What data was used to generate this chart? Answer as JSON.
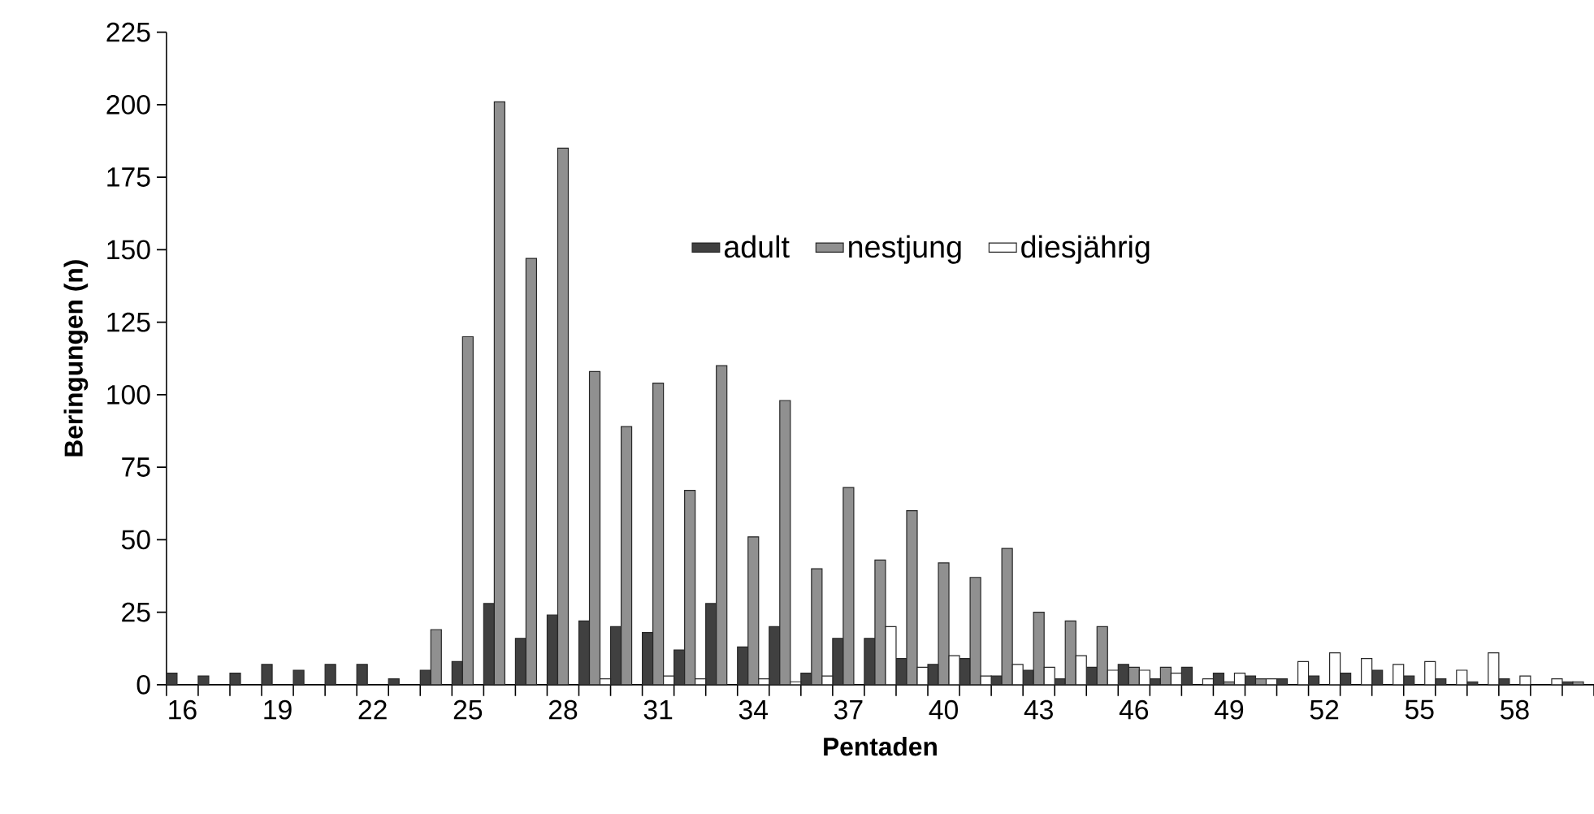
{
  "chart_data": {
    "type": "bar",
    "xlabel": "Pentaden",
    "ylabel": "Beringungen (n)",
    "categories": [
      "16",
      null,
      null,
      "19",
      null,
      null,
      "22",
      null,
      null,
      "25",
      null,
      null,
      "28",
      null,
      null,
      "31",
      null,
      null,
      "34",
      null,
      null,
      "37",
      null,
      null,
      "40",
      null,
      null,
      "43",
      null,
      null,
      "46",
      null,
      null,
      "49",
      null,
      null,
      "52",
      null,
      null,
      "55",
      null,
      null,
      "58",
      null,
      null
    ],
    "series": [
      {
        "name": "adult",
        "color": "#404040",
        "values": [
          4,
          3,
          4,
          7,
          5,
          7,
          7,
          2,
          5,
          8,
          28,
          16,
          24,
          22,
          20,
          18,
          12,
          28,
          13,
          20,
          4,
          16,
          16,
          9,
          7,
          9,
          3,
          5,
          2,
          6,
          7,
          2,
          6,
          4,
          3,
          2,
          3,
          4,
          5,
          3,
          2,
          1,
          2,
          null,
          1
        ]
      },
      {
        "name": "nestjung",
        "color": "#909090",
        "values": [
          null,
          null,
          null,
          null,
          null,
          null,
          null,
          null,
          19,
          120,
          201,
          147,
          185,
          108,
          89,
          104,
          67,
          110,
          51,
          98,
          40,
          68,
          43,
          60,
          42,
          37,
          47,
          25,
          22,
          20,
          6,
          6,
          null,
          1,
          2,
          null,
          null,
          null,
          null,
          null,
          null,
          null,
          null,
          null,
          1
        ]
      },
      {
        "name": "diesjährig",
        "color": "#ffffff",
        "values": [
          null,
          null,
          null,
          null,
          null,
          null,
          null,
          null,
          null,
          null,
          null,
          null,
          null,
          2,
          null,
          3,
          2,
          null,
          2,
          1,
          3,
          null,
          20,
          6,
          10,
          3,
          7,
          6,
          10,
          5,
          5,
          4,
          2,
          4,
          2,
          8,
          11,
          9,
          7,
          8,
          5,
          11,
          3,
          2,
          null
        ]
      }
    ],
    "ylim": [
      0,
      225
    ],
    "yticks": [
      0,
      25,
      50,
      75,
      100,
      125,
      150,
      175,
      200,
      225
    ],
    "grid": false,
    "legend": "top"
  }
}
